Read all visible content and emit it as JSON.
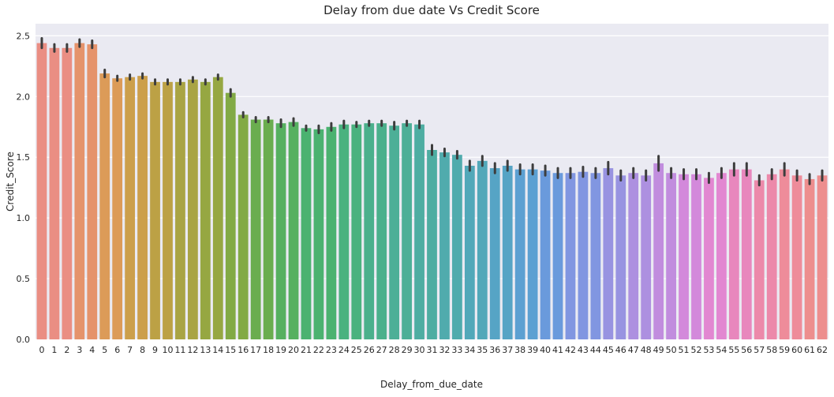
{
  "chart_data": {
    "type": "bar",
    "title": "Delay from due date Vs Credit Score",
    "xlabel": "Delay_from_due_date",
    "ylabel": "Credit_Score",
    "ylim": [
      0,
      2.6
    ],
    "yticks": [
      "0.0",
      "0.5",
      "1.0",
      "1.5",
      "2.0",
      "2.5"
    ],
    "grid": true,
    "categories": [
      "0",
      "1",
      "2",
      "3",
      "4",
      "5",
      "6",
      "7",
      "8",
      "9",
      "10",
      "11",
      "12",
      "13",
      "14",
      "15",
      "16",
      "17",
      "18",
      "19",
      "20",
      "21",
      "22",
      "23",
      "24",
      "25",
      "26",
      "27",
      "28",
      "29",
      "30",
      "31",
      "32",
      "33",
      "34",
      "35",
      "36",
      "37",
      "38",
      "39",
      "40",
      "41",
      "42",
      "43",
      "44",
      "45",
      "46",
      "47",
      "48",
      "49",
      "50",
      "51",
      "52",
      "53",
      "54",
      "55",
      "56",
      "57",
      "58",
      "59",
      "60",
      "61",
      "62"
    ],
    "values": [
      2.44,
      2.4,
      2.4,
      2.44,
      2.43,
      2.19,
      2.15,
      2.16,
      2.17,
      2.12,
      2.12,
      2.12,
      2.14,
      2.12,
      2.16,
      2.03,
      1.85,
      1.81,
      1.81,
      1.78,
      1.79,
      1.74,
      1.73,
      1.75,
      1.77,
      1.77,
      1.78,
      1.78,
      1.76,
      1.78,
      1.77,
      1.56,
      1.54,
      1.52,
      1.43,
      1.47,
      1.41,
      1.43,
      1.4,
      1.4,
      1.39,
      1.37,
      1.37,
      1.38,
      1.37,
      1.41,
      1.35,
      1.37,
      1.35,
      1.45,
      1.37,
      1.36,
      1.36,
      1.33,
      1.37,
      1.4,
      1.4,
      1.31,
      1.36,
      1.4,
      1.35,
      1.32,
      1.35
    ],
    "errors": [
      0.04,
      0.03,
      0.03,
      0.03,
      0.03,
      0.03,
      0.02,
      0.02,
      0.02,
      0.02,
      0.02,
      0.02,
      0.02,
      0.02,
      0.02,
      0.03,
      0.02,
      0.02,
      0.02,
      0.03,
      0.03,
      0.02,
      0.03,
      0.03,
      0.03,
      0.02,
      0.02,
      0.02,
      0.03,
      0.02,
      0.03,
      0.04,
      0.03,
      0.03,
      0.04,
      0.04,
      0.04,
      0.04,
      0.04,
      0.04,
      0.04,
      0.04,
      0.04,
      0.04,
      0.04,
      0.05,
      0.04,
      0.04,
      0.04,
      0.06,
      0.04,
      0.04,
      0.04,
      0.04,
      0.04,
      0.05,
      0.05,
      0.04,
      0.04,
      0.05,
      0.04,
      0.04,
      0.04
    ],
    "palette": [
      "#ea8e83",
      "#e5936b",
      "#dc9b58",
      "#cc9f4b",
      "#bca145",
      "#a9a444",
      "#96a742",
      "#82aa45",
      "#6aad4f",
      "#56b060",
      "#4bb270",
      "#4ab27f",
      "#4bb08c",
      "#4daf97",
      "#4eada2",
      "#50abad",
      "#52a8b9",
      "#56a4c5",
      "#5ca0d2",
      "#6a9adc",
      "#8196e1",
      "#9893e1",
      "#ad90e0",
      "#c18dde",
      "#d389db",
      "#e287d1",
      "#e887bd",
      "#ec89aa",
      "#ee8c9a",
      "#ed8e8e"
    ]
  }
}
